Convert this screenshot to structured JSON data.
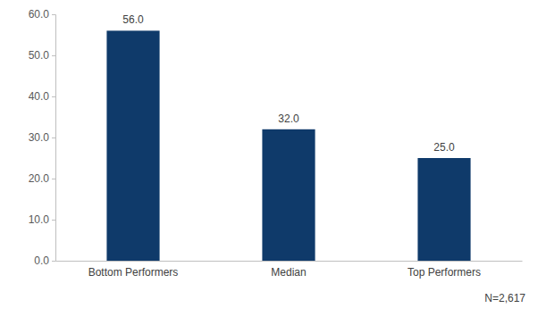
{
  "chart_data": {
    "type": "bar",
    "categories": [
      "Bottom Performers",
      "Median",
      "Top Performers"
    ],
    "values": [
      56.0,
      32.0,
      25.0
    ],
    "value_labels": [
      "56.0",
      "32.0",
      "25.0"
    ],
    "color": "#0f3a6a",
    "ylim": [
      0,
      60
    ],
    "yticks": [
      {
        "value": 0,
        "label": "0.0"
      },
      {
        "value": 10,
        "label": "10.0"
      },
      {
        "value": 20,
        "label": "20.0"
      },
      {
        "value": 30,
        "label": "30.0"
      },
      {
        "value": 40,
        "label": "40.0"
      },
      {
        "value": 50,
        "label": "50.0"
      },
      {
        "value": 60,
        "label": "60.0"
      }
    ],
    "grid": false,
    "data_labels": true,
    "annotation": "N=2,617"
  }
}
